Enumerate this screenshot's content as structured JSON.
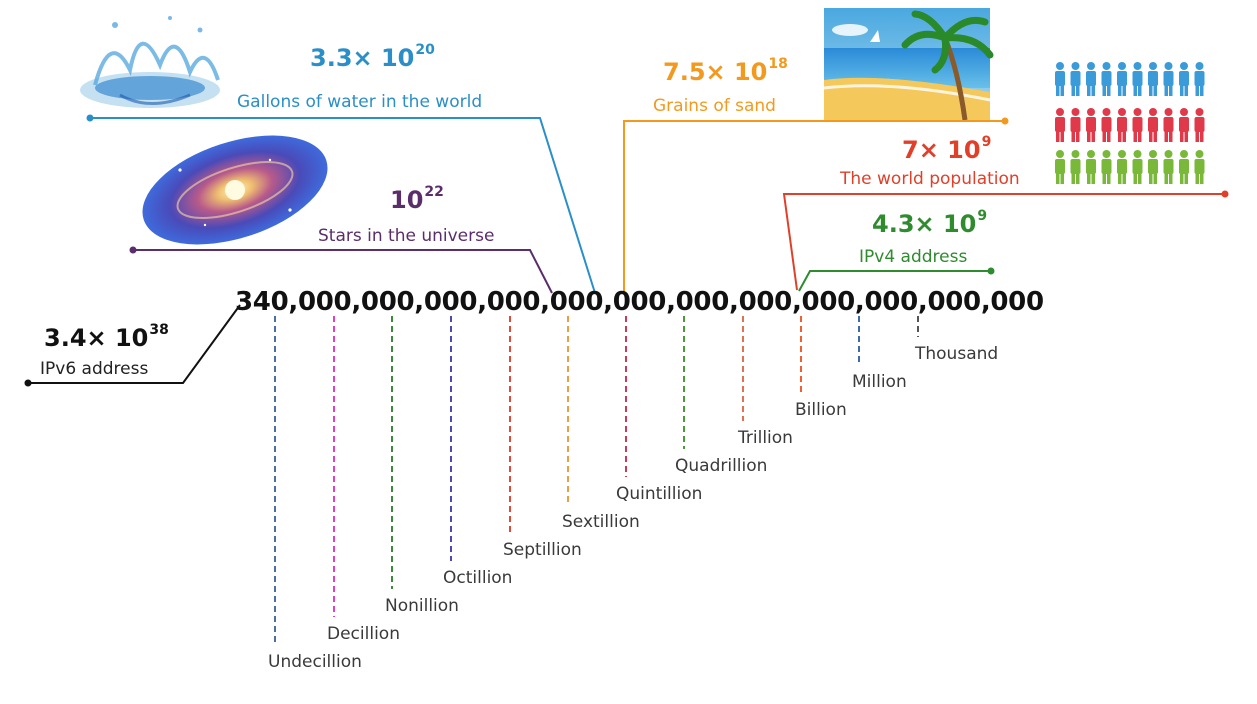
{
  "number_display": "340,000,000,000,000,000,000,000,000,000,000,000,000",
  "annotations": {
    "ipv6": {
      "base": "3.4× 10",
      "exp": "38",
      "caption": "IPv6 address",
      "color": "#111111"
    },
    "water": {
      "base": "3.3× 10",
      "exp": "20",
      "caption": "Gallons of water in the world",
      "color": "#2a8fc8"
    },
    "stars": {
      "base": "10",
      "exp": "22",
      "caption": "Stars in the universe",
      "color": "#5a2e6b"
    },
    "sand": {
      "base": "7.5× 10",
      "exp": "18",
      "caption": "Grains of sand",
      "color": "#f39a1e"
    },
    "population": {
      "base": "7× 10",
      "exp": "9",
      "caption": "The world population",
      "color": "#e0402a"
    },
    "ipv4": {
      "base": "4.3× 10",
      "exp": "9",
      "caption": "IPv4 address",
      "color": "#2e8b2e"
    }
  },
  "units": [
    {
      "name": "Undecillion",
      "color": "#4a6fa5"
    },
    {
      "name": "Decillion",
      "color": "#e040c8"
    },
    {
      "name": "Nonillion",
      "color": "#3a8a3a"
    },
    {
      "name": "Octillion",
      "color": "#4a4ab0"
    },
    {
      "name": "Septillion",
      "color": "#e04a3a"
    },
    {
      "name": "Sextillion",
      "color": "#e8a040"
    },
    {
      "name": "Quintillion",
      "color": "#c83a5a"
    },
    {
      "name": "Quadrillion",
      "color": "#4a9a3a"
    },
    {
      "name": "Trillion",
      "color": "#e07050"
    },
    {
      "name": "Billion",
      "color": "#f06030"
    },
    {
      "name": "Million",
      "color": "#3a6ab0"
    },
    {
      "name": "Thousand",
      "color": "#555555"
    }
  ],
  "people_colors": [
    "#3b9bd9",
    "#e03a4a",
    "#7ab83a"
  ],
  "icons": {
    "water": "water-splash-icon",
    "galaxy": "galaxy-icon",
    "beach": "beach-icon",
    "people": "people-icon"
  }
}
